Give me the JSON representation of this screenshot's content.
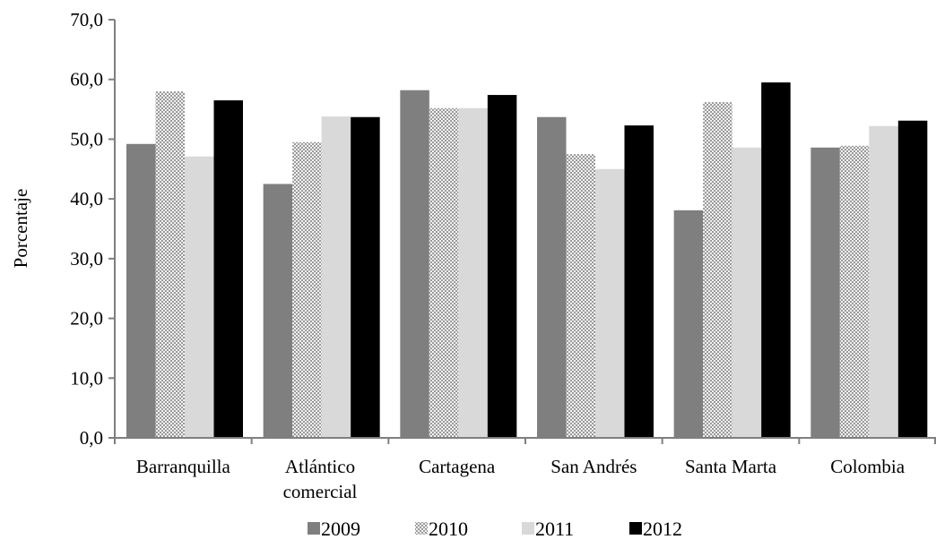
{
  "chart_data": {
    "type": "bar",
    "title": "",
    "xlabel": "",
    "ylabel": "Porcentaje",
    "ylim": [
      0,
      70
    ],
    "yticks": [
      "0,0",
      "10,0",
      "20,0",
      "30,0",
      "40,0",
      "50,0",
      "60,0",
      "70,0"
    ],
    "grid": false,
    "legend_position": "bottom",
    "categories": [
      [
        "Barranquilla"
      ],
      [
        "Atlántico",
        "comercial"
      ],
      [
        "Cartagena"
      ],
      [
        "San Andrés"
      ],
      [
        "Santa Marta"
      ],
      [
        "Colombia"
      ]
    ],
    "series": [
      {
        "name": "2009",
        "color": "#7f7f7f",
        "pattern": "solid",
        "values": [
          49.2,
          42.5,
          58.2,
          53.7,
          38.1,
          48.6
        ]
      },
      {
        "name": "2010",
        "color": "#d0d0d0",
        "pattern": "dotted",
        "values": [
          58.0,
          49.5,
          55.2,
          47.5,
          56.2,
          48.9
        ]
      },
      {
        "name": "2011",
        "color": "#d9d9d9",
        "pattern": "solid",
        "values": [
          47.1,
          53.8,
          55.2,
          45.0,
          48.6,
          52.2
        ]
      },
      {
        "name": "2012",
        "color": "#000000",
        "pattern": "solid",
        "values": [
          56.5,
          53.7,
          57.4,
          52.3,
          59.5,
          53.1
        ]
      }
    ]
  }
}
